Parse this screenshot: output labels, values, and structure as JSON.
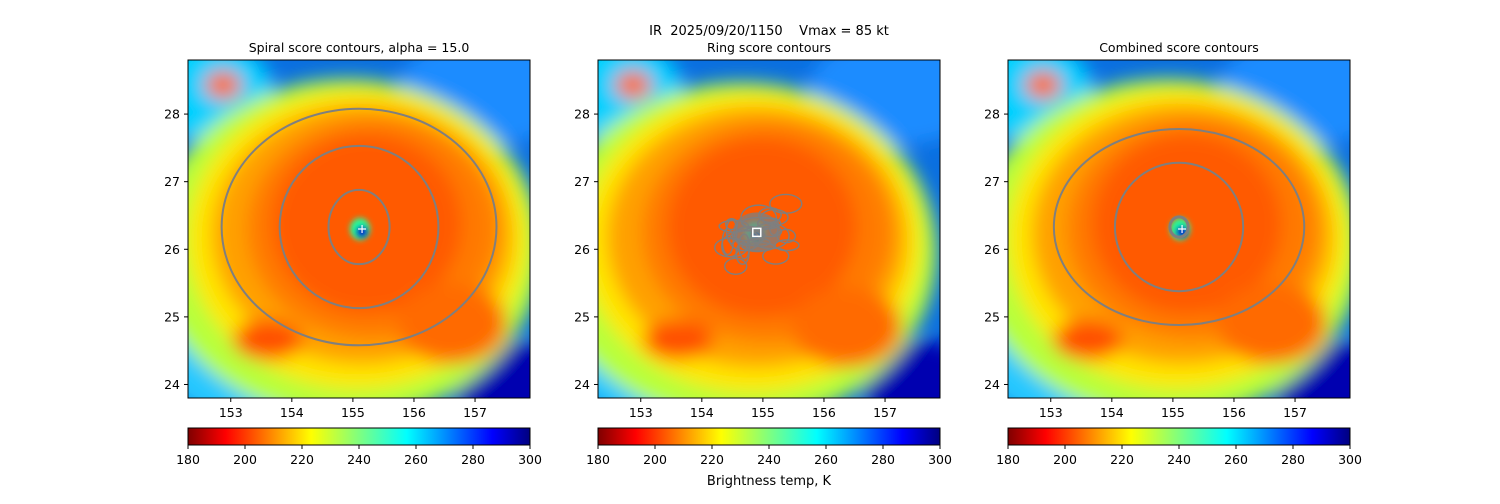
{
  "suptitle": "IR  2025/09/20/1150    Vmax = 85 kt",
  "colorbar_label": "Brightness temp, K",
  "colormap": "jet",
  "contour_color": "#7f7f7f",
  "chart_data": [
    {
      "type": "heatmap",
      "title": "Spiral score contours, alpha = 15.0",
      "x_ticks": [
        153,
        154,
        155,
        156,
        157
      ],
      "y_ticks": [
        24,
        25,
        26,
        27,
        28
      ],
      "xlim": [
        152.3,
        157.9
      ],
      "ylim": [
        23.8,
        28.8
      ],
      "center_marker": {
        "style": "plus",
        "lon": 155.15,
        "lat": 26.3
      },
      "contour_levels": [
        {
          "lon_radius": 0.5,
          "lat_radius": 0.55
        },
        {
          "lon_radius": 1.3,
          "lat_radius": 1.2
        },
        {
          "lon_radius": 2.25,
          "lat_radius": 1.75
        }
      ],
      "colorbar": {
        "ticks": [
          180,
          200,
          220,
          240,
          260,
          280,
          300
        ],
        "range": [
          180,
          300
        ]
      }
    },
    {
      "type": "heatmap",
      "title": "Ring score contours",
      "x_ticks": [
        153,
        154,
        155,
        156,
        157
      ],
      "y_ticks": [
        24,
        25,
        26,
        27,
        28
      ],
      "xlim": [
        152.3,
        157.9
      ],
      "ylim": [
        23.8,
        28.8
      ],
      "center_marker": {
        "style": "square",
        "lon": 154.9,
        "lat": 26.25
      },
      "contour_levels": [],
      "colorbar": {
        "ticks": [
          180,
          200,
          220,
          240,
          260,
          280,
          300
        ],
        "range": [
          180,
          300
        ]
      }
    },
    {
      "type": "heatmap",
      "title": "Combined score contours",
      "x_ticks": [
        153,
        154,
        155,
        156,
        157
      ],
      "y_ticks": [
        24,
        25,
        26,
        27,
        28
      ],
      "xlim": [
        152.3,
        157.9
      ],
      "ylim": [
        23.8,
        28.8
      ],
      "center_marker": {
        "style": "plus",
        "lon": 155.15,
        "lat": 26.3
      },
      "contour_levels": [
        {
          "lon_radius": 0.15,
          "lat_radius": 0.15
        },
        {
          "lon_radius": 1.05,
          "lat_radius": 0.95
        },
        {
          "lon_radius": 2.05,
          "lat_radius": 1.45
        }
      ],
      "colorbar": {
        "ticks": [
          180,
          200,
          220,
          240,
          260,
          280,
          300
        ],
        "range": [
          180,
          300
        ]
      }
    }
  ]
}
